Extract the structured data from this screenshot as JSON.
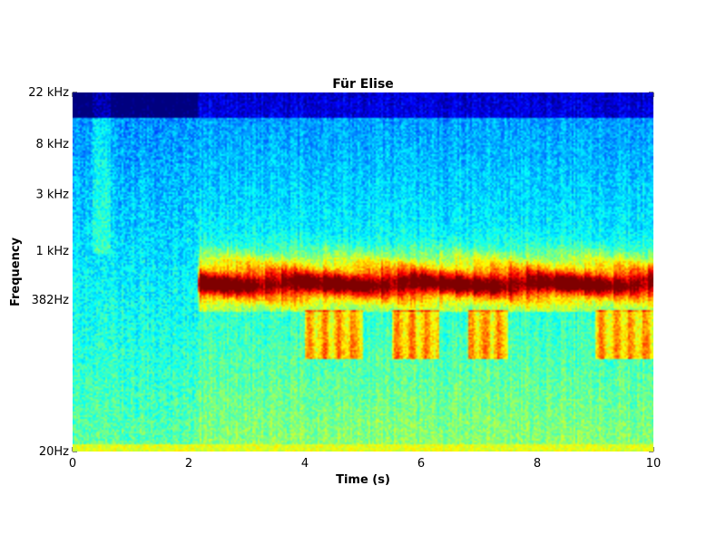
{
  "chart_data": {
    "type": "heatmap",
    "title": "Für Elise",
    "xlabel": "Time (s)",
    "ylabel": "Frequency",
    "xlim": [
      0,
      10
    ],
    "x_ticks": [
      0,
      2,
      4,
      6,
      8,
      10
    ],
    "y_scale": "log",
    "ylim_hz": [
      20,
      22000
    ],
    "y_ticks": [
      {
        "value_hz": 20,
        "label": "20Hz"
      },
      {
        "value_hz": 382,
        "label": "382Hz"
      },
      {
        "value_hz": 1000,
        "label": "1 kHz"
      },
      {
        "value_hz": 3000,
        "label": "3 kHz"
      },
      {
        "value_hz": 8000,
        "label": "8 kHz"
      },
      {
        "value_hz": 22000,
        "label": "22 kHz"
      }
    ],
    "colormap": "jet",
    "colormap_stops": [
      "#00007f",
      "#0000ff",
      "#007fff",
      "#00ffff",
      "#7fff7f",
      "#ffff00",
      "#ff7f00",
      "#ff0000",
      "#7f0000"
    ],
    "grid": false,
    "legend": "none",
    "music_onset_s": 2.15,
    "melody_band_hz": [
      300,
      2000
    ],
    "bass_band_hz": [
      120,
      320
    ],
    "bass_segments_s": [
      [
        4.0,
        5.0
      ],
      [
        5.5,
        6.3
      ],
      [
        6.8,
        7.5
      ],
      [
        9.0,
        10.0
      ]
    ],
    "note_onsets_s": [
      2.2,
      2.4,
      2.6,
      2.8,
      3.0,
      3.3,
      3.6,
      3.8,
      4.0,
      4.3,
      4.5,
      4.8,
      5.0,
      5.3,
      5.6,
      5.8,
      6.0,
      6.3,
      6.6,
      6.9,
      7.2,
      7.5,
      7.8,
      8.0,
      8.3,
      8.5,
      8.8,
      9.0,
      9.3,
      9.6,
      9.9
    ]
  }
}
